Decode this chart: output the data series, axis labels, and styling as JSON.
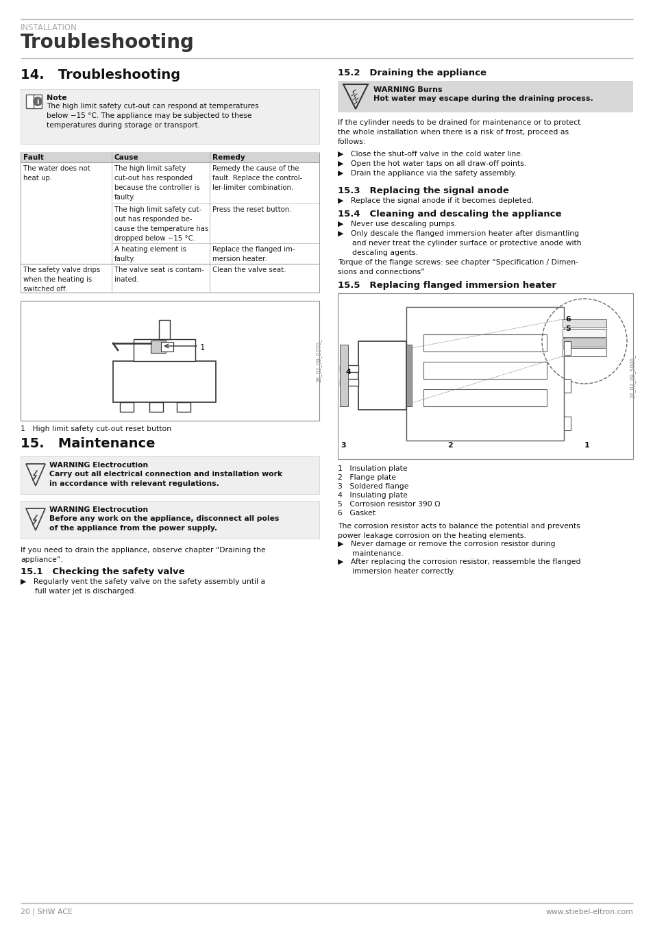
{
  "page_bg": "#ffffff",
  "header_label": "INSTALLATION",
  "header_title": "Troubleshooting",
  "footer_left": "20 | SHW ACE",
  "footer_right": "www.stiebel-eltron.com",
  "section14_title": "14.   Troubleshooting",
  "note_bold": "Note",
  "note_body": "The high limit safety cut-out can respond at temperatures\nbelow −15 °C. The appliance may be subjected to these\ntemperatures during storage or transport.",
  "table_cols": [
    "Fault",
    "Cause",
    "Remedy"
  ],
  "fig1_caption": "1   High limit safety cut-out reset button",
  "section15_title": "15.   Maintenance",
  "w1_title": "WARNING Electrocution",
  "w1_body": "Carry out all electrical connection and installation work\nin accordance with relevant regulations.",
  "w2_title": "WARNING Electrocution",
  "w2_body": "Before any work on the appliance, disconnect all poles\nof the appliance from the power supply.",
  "drain_text": "If you need to drain the appliance, observe chapter “Draining the\nappliance”.",
  "s151_title": "15.1   Checking the safety valve",
  "s151_body": "▶   Regularly vent the safety valve on the safety assembly until a\n      full water jet is discharged.",
  "s152_title": "15.2   Draining the appliance",
  "w3_title": "WARNING Burns",
  "w3_body": "Hot water may escape during the draining process.",
  "s152_intro": "If the cylinder needs to be drained for maintenance or to protect\nthe whole installation when there is a risk of frost, proceed as\nfollows:",
  "s152_bullets": [
    "▶   Close the shut-off valve in the cold water line.",
    "▶   Open the hot water taps on all draw-off points.",
    "▶   Drain the appliance via the safety assembly."
  ],
  "s153_title": "15.3   Replacing the signal anode",
  "s153_body": "▶   Replace the signal anode if it becomes depleted.",
  "s154_title": "15.4   Cleaning and descaling the appliance",
  "s154_b1": "▶   Never use descaling pumps.",
  "s154_b2": "▶   Only descale the flanged immersion heater after dismantling\n      and never treat the cylinder surface or protective anode with\n      descaling agents.",
  "s154_torque": "Torque of the flange screws: see chapter “Specification / Dimen-\nsions and connections”",
  "s155_title": "15.5   Replacing flanged immersion heater",
  "fig2_labels": [
    "1   Insulation plate",
    "2   Flange plate",
    "3   Soldered flange",
    "4   Insulating plate",
    "5   Corrosion resistor 390 Ω",
    "6   Gasket"
  ],
  "fig2_b1": "▶   Never damage or remove the corrosion resistor during\n      maintenance.",
  "fig2_b2": "▶   After replacing the corrosion resistor, reassemble the flanged\n      immersion heater correctly.",
  "fig2_intro": "The corrosion resistor acts to balance the potential and prevents\npower leakage corrosion on the heating elements."
}
